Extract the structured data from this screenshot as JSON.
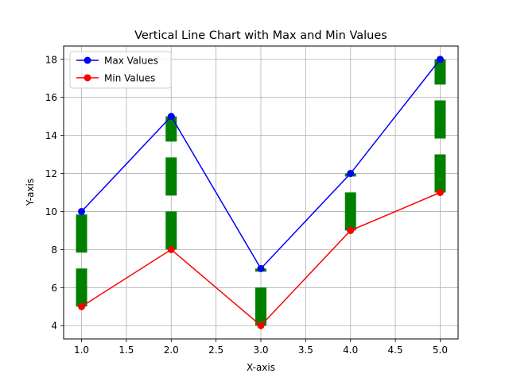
{
  "chart_data": {
    "type": "line",
    "title": "Vertical Line Chart with Max and Min Values",
    "xlabel": "X-axis",
    "ylabel": "Y-axis",
    "x": [
      1,
      2,
      3,
      4,
      5
    ],
    "xlim": [
      0.8,
      5.2
    ],
    "ylim": [
      3.3,
      18.7
    ],
    "x_ticks": [
      "1.0",
      "1.5",
      "2.0",
      "2.5",
      "3.0",
      "3.5",
      "4.0",
      "4.5",
      "5.0"
    ],
    "y_ticks": [
      "4",
      "6",
      "8",
      "10",
      "12",
      "14",
      "16",
      "18"
    ],
    "grid": true,
    "legend_position": "top-left",
    "series": [
      {
        "name": "Max Values",
        "color": "#0000ff",
        "values": [
          10,
          15,
          7,
          12,
          18
        ]
      },
      {
        "name": "Min Values",
        "color": "#ff0000",
        "values": [
          5,
          8,
          4,
          9,
          11
        ]
      }
    ],
    "vertical_segments": {
      "color": "#008000",
      "style": "dashed",
      "ranges": [
        {
          "x": 1,
          "from": 5,
          "to": 10
        },
        {
          "x": 2,
          "from": 8,
          "to": 15
        },
        {
          "x": 3,
          "from": 4,
          "to": 7
        },
        {
          "x": 4,
          "from": 9,
          "to": 12
        },
        {
          "x": 5,
          "from": 11,
          "to": 18
        }
      ]
    }
  }
}
